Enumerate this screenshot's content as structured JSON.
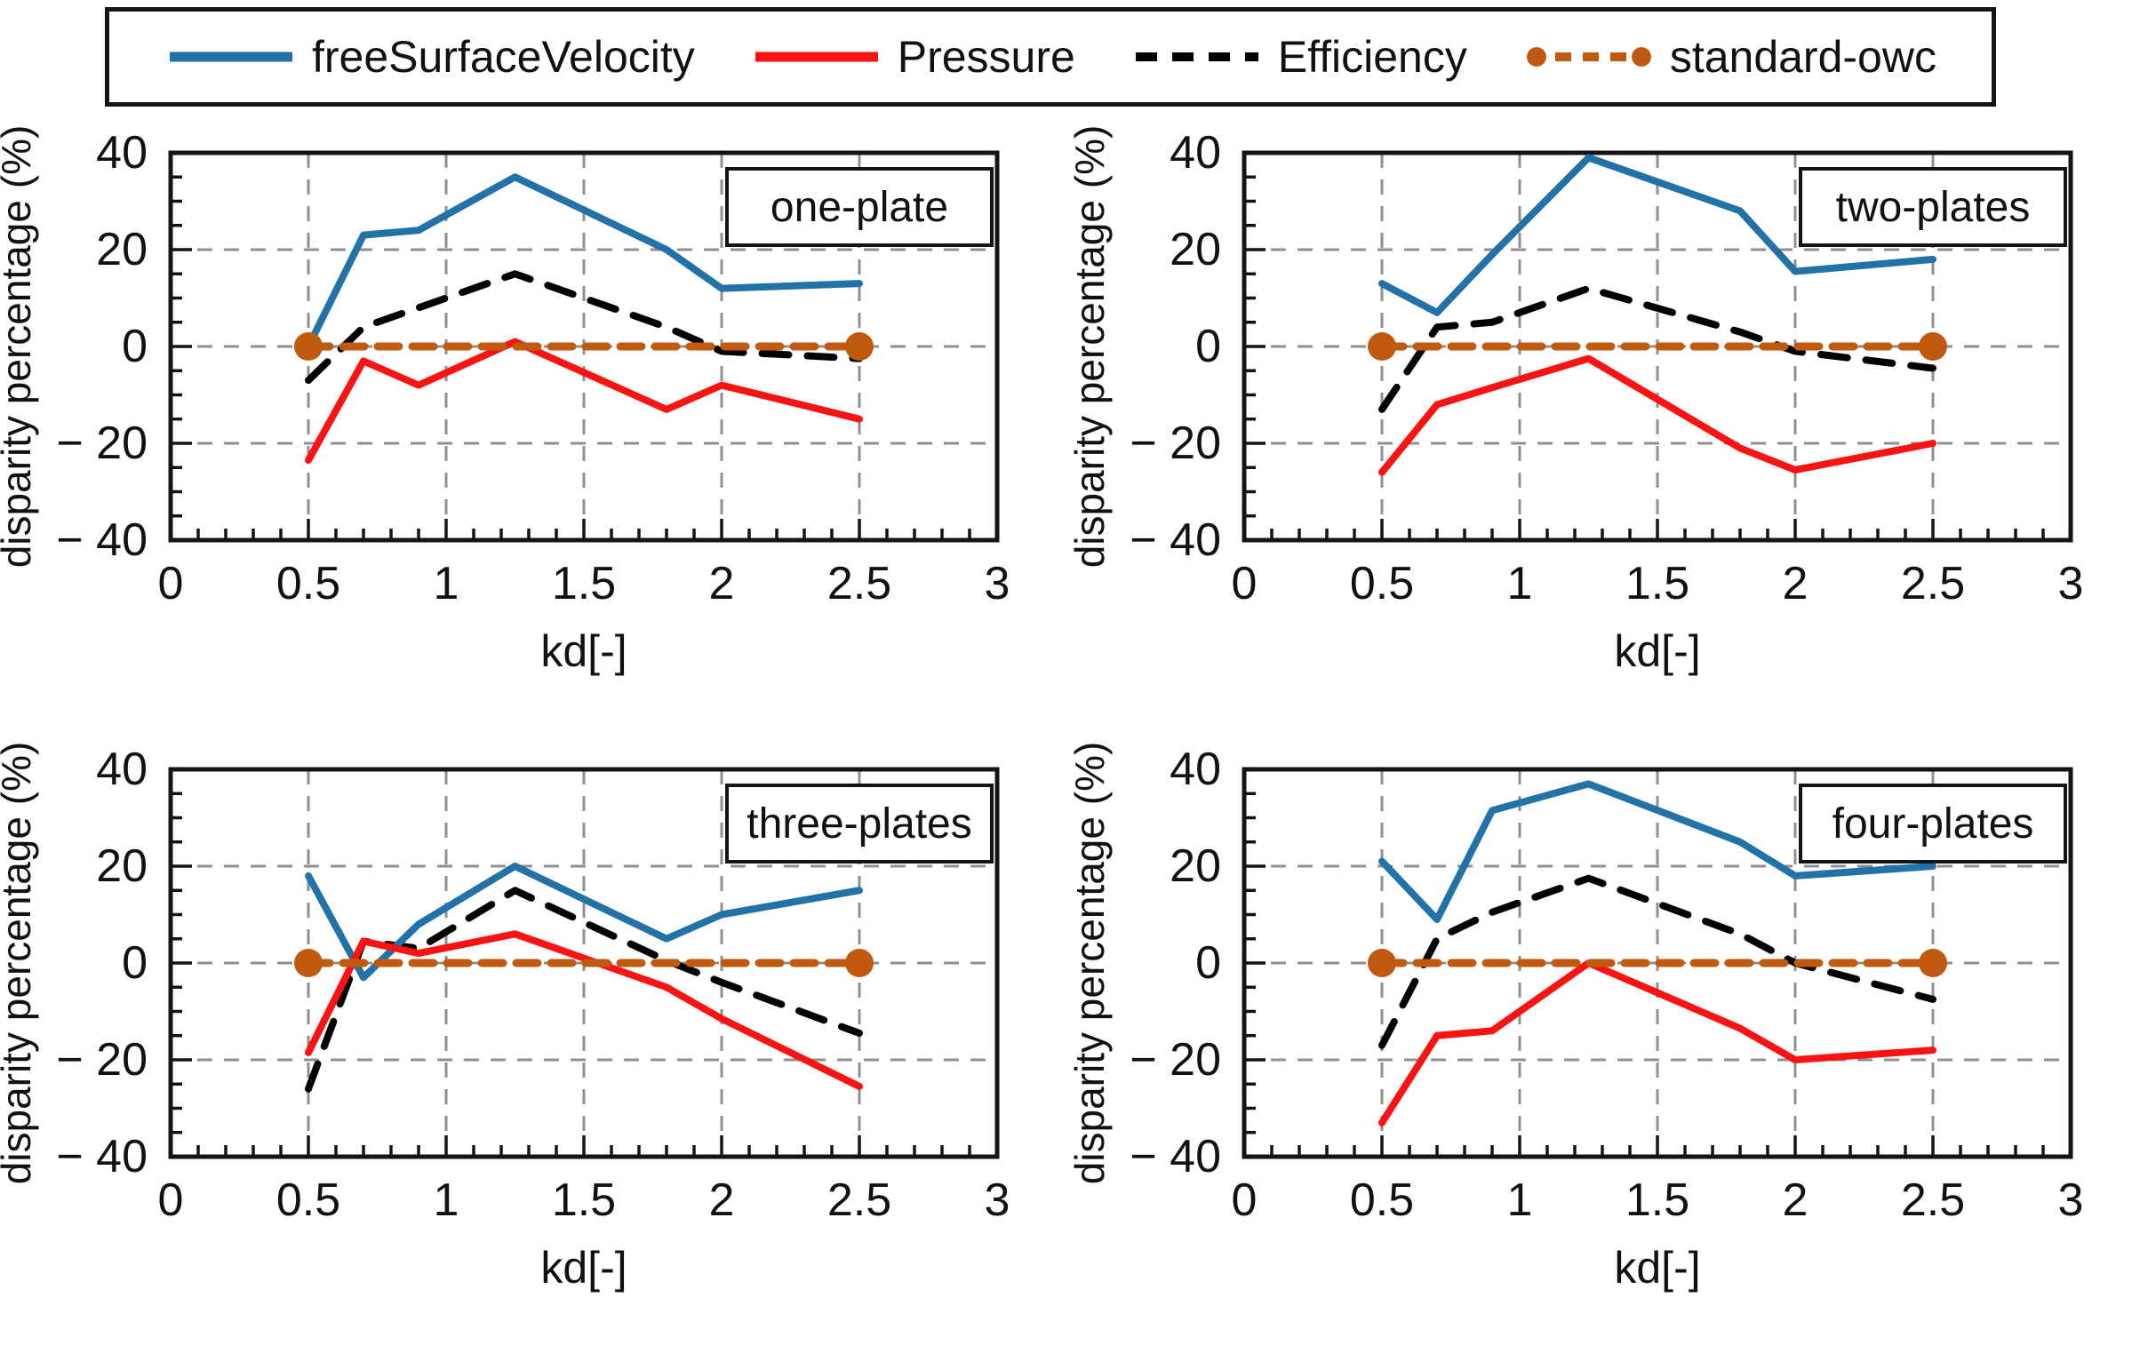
{
  "page": {
    "background": "#ffffff"
  },
  "colors": {
    "freeSurfaceVelocity": "#2272A8",
    "pressure": "#FB1212",
    "efficiency": "#000000",
    "standard_owc": "#C05A11",
    "grid": "#8F8F8F",
    "frame": "#141414"
  },
  "legend": {
    "items": [
      {
        "label": "freeSurfaceVelocity",
        "color": "#2272A8",
        "style": "solid"
      },
      {
        "label": "Pressure",
        "color": "#FB1212",
        "style": "solid"
      },
      {
        "label": "Efficiency",
        "color": "#000000",
        "style": "dashed"
      },
      {
        "label": "standard-owc",
        "color": "#C05A11",
        "style": "dashed-marker"
      }
    ]
  },
  "axes": {
    "xlabel": "kd[-]",
    "ylabel": "disparity percentage (%)",
    "xlim": [
      0,
      3
    ],
    "ylim": [
      -40,
      40
    ],
    "x_ticks": [
      0,
      0.5,
      1,
      1.5,
      2,
      2.5,
      3
    ],
    "x_tick_labels": [
      "0",
      "0.5",
      "1",
      "1.5",
      "2",
      "2.5",
      "3"
    ],
    "y_ticks": [
      -40,
      -20,
      0,
      20,
      40
    ],
    "y_tick_labels": [
      "− 40",
      "− 20",
      "0",
      "20",
      "40"
    ],
    "grid_x": [
      0.5,
      1,
      1.5,
      2,
      2.5
    ],
    "grid_y": [
      -20,
      0,
      20
    ],
    "x_minor_step": 0.1,
    "y_minor_step": 5,
    "grid": true
  },
  "chart_data": [
    {
      "type": "line",
      "title": "one-plate",
      "xlabel": "kd[-]",
      "ylabel": "disparity percentage (%)",
      "xlim": [
        0,
        3
      ],
      "ylim": [
        -40,
        40
      ],
      "x": [
        0.5,
        0.7,
        0.9,
        1.25,
        1.8,
        2,
        2.5
      ],
      "series": [
        {
          "name": "Efficiency",
          "color": "#000000",
          "dash": [
            30,
            21
          ],
          "width": 8,
          "values": [
            -7,
            4,
            8,
            15,
            4,
            -1,
            -2.5
          ]
        },
        {
          "name": "freeSurfaceVelocity",
          "color": "#2272A8",
          "dash": null,
          "width": 8,
          "values": [
            0,
            23,
            24,
            35,
            20,
            12,
            13
          ]
        },
        {
          "name": "Pressure",
          "color": "#FB1212",
          "dash": null,
          "width": 8,
          "values": [
            -23.5,
            -3,
            -8,
            1,
            -13,
            -8,
            -15
          ]
        },
        {
          "name": "standard-owc",
          "color": "#C05A11",
          "dash": [
            24,
            15
          ],
          "width": 9,
          "x": [
            0.5,
            2.5
          ],
          "values": [
            0,
            0
          ],
          "markers": true
        }
      ]
    },
    {
      "type": "line",
      "title": "two-plates",
      "xlabel": "kd[-]",
      "ylabel": "disparity percentage (%)",
      "xlim": [
        0,
        3
      ],
      "ylim": [
        -40,
        40
      ],
      "x": [
        0.5,
        0.7,
        0.9,
        1.25,
        1.8,
        2,
        2.5
      ],
      "series": [
        {
          "name": "Efficiency",
          "color": "#000000",
          "dash": [
            30,
            21
          ],
          "width": 8,
          "values": [
            -13,
            4,
            5,
            12,
            3,
            -1,
            -4.5
          ]
        },
        {
          "name": "freeSurfaceVelocity",
          "color": "#2272A8",
          "dash": null,
          "width": 8,
          "values": [
            13,
            7,
            19,
            39,
            28,
            15.5,
            18
          ]
        },
        {
          "name": "Pressure",
          "color": "#FB1212",
          "dash": null,
          "width": 8,
          "values": [
            -26,
            -12,
            -8.5,
            -2.5,
            -21,
            -25.5,
            -20
          ]
        },
        {
          "name": "standard-owc",
          "color": "#C05A11",
          "dash": [
            24,
            15
          ],
          "width": 9,
          "x": [
            0.5,
            2.5
          ],
          "values": [
            0,
            0
          ],
          "markers": true
        }
      ]
    },
    {
      "type": "line",
      "title": "three-plates",
      "xlabel": "kd[-]",
      "ylabel": "disparity percentage (%)",
      "xlim": [
        0,
        3
      ],
      "ylim": [
        -40,
        40
      ],
      "x": [
        0.5,
        0.7,
        0.9,
        1.25,
        1.8,
        2,
        2.5
      ],
      "series": [
        {
          "name": "Efficiency",
          "color": "#000000",
          "dash": [
            30,
            21
          ],
          "width": 8,
          "values": [
            -26,
            4.5,
            3,
            15,
            0.5,
            -4,
            -14.5
          ]
        },
        {
          "name": "freeSurfaceVelocity",
          "color": "#2272A8",
          "dash": null,
          "width": 8,
          "values": [
            18,
            -3,
            8,
            20,
            5,
            10,
            15
          ]
        },
        {
          "name": "Pressure",
          "color": "#FB1212",
          "dash": null,
          "width": 8,
          "values": [
            -18.5,
            4.5,
            2,
            6,
            -5,
            -11.5,
            -25.5
          ]
        },
        {
          "name": "standard-owc",
          "color": "#C05A11",
          "dash": [
            24,
            15
          ],
          "width": 9,
          "x": [
            0.5,
            2.5
          ],
          "values": [
            0,
            0
          ],
          "markers": true
        }
      ]
    },
    {
      "type": "line",
      "title": "four-plates",
      "xlabel": "kd[-]",
      "ylabel": "disparity percentage (%)",
      "xlim": [
        0,
        3
      ],
      "ylim": [
        -40,
        40
      ],
      "x": [
        0.5,
        0.7,
        0.9,
        1.25,
        1.8,
        2,
        2.5
      ],
      "series": [
        {
          "name": "Efficiency",
          "color": "#000000",
          "dash": [
            30,
            21
          ],
          "width": 8,
          "values": [
            -17,
            5,
            10.5,
            17.5,
            6,
            0,
            -7.5
          ]
        },
        {
          "name": "freeSurfaceVelocity",
          "color": "#2272A8",
          "dash": null,
          "width": 8,
          "values": [
            21,
            9,
            31.5,
            37,
            25,
            18,
            20
          ]
        },
        {
          "name": "Pressure",
          "color": "#FB1212",
          "dash": null,
          "width": 8,
          "values": [
            -33,
            -15,
            -14,
            0,
            -13.5,
            -20,
            -18
          ]
        },
        {
          "name": "standard-owc",
          "color": "#C05A11",
          "dash": [
            24,
            15
          ],
          "width": 9,
          "x": [
            0.5,
            2.5
          ],
          "values": [
            0,
            0
          ],
          "markers": true
        }
      ]
    }
  ]
}
